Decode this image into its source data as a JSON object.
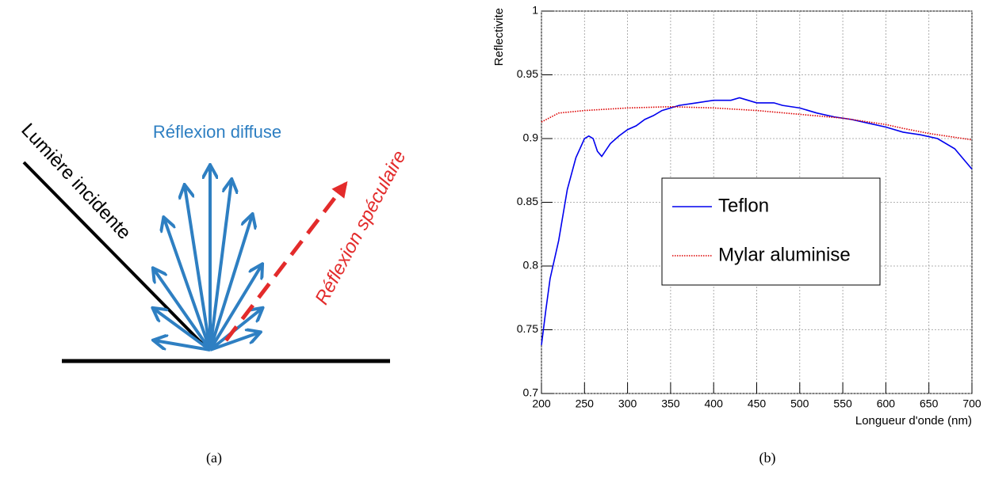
{
  "diagram": {
    "incident_label": "Lumière incidente",
    "diffuse_label": "Réflexion diffuse",
    "specular_label": "Réflexion spéculaire"
  },
  "captions": [
    "(a)",
    "(b)"
  ],
  "chart_data": {
    "type": "line",
    "y_label": "Reflectivite",
    "x_label": "Longueur d'onde (nm)",
    "xlim": [
      200,
      700
    ],
    "xticks": [
      200,
      250,
      300,
      350,
      400,
      450,
      500,
      550,
      600,
      650,
      700
    ],
    "ylim": [
      0.7,
      1
    ],
    "yticks": [
      0.7,
      0.75,
      0.8,
      0.85,
      0.9,
      0.95,
      1
    ],
    "grid": true,
    "legend": "center",
    "series": [
      {
        "name": "Teflon",
        "color": "#0000ee",
        "style": "solid",
        "x": [
          200,
          205,
          210,
          220,
          230,
          240,
          250,
          255,
          260,
          265,
          270,
          280,
          290,
          300,
          310,
          320,
          330,
          340,
          350,
          360,
          380,
          400,
          420,
          430,
          440,
          450,
          470,
          480,
          500,
          520,
          540,
          560,
          580,
          600,
          620,
          640,
          660,
          680,
          690,
          700
        ],
        "values": [
          0.738,
          0.765,
          0.79,
          0.82,
          0.86,
          0.885,
          0.9,
          0.902,
          0.9,
          0.89,
          0.886,
          0.896,
          0.902,
          0.907,
          0.91,
          0.915,
          0.918,
          0.922,
          0.924,
          0.926,
          0.928,
          0.93,
          0.93,
          0.932,
          0.93,
          0.928,
          0.928,
          0.926,
          0.924,
          0.92,
          0.917,
          0.915,
          0.912,
          0.909,
          0.905,
          0.903,
          0.9,
          0.892,
          0.884,
          0.876
        ]
      },
      {
        "name": "Mylar aluminise",
        "color": "#dd0000",
        "style": "dotted",
        "x": [
          200,
          220,
          250,
          300,
          350,
          400,
          450,
          500,
          550,
          600,
          620,
          650,
          700
        ],
        "values": [
          0.913,
          0.92,
          0.922,
          0.924,
          0.925,
          0.924,
          0.922,
          0.919,
          0.916,
          0.911,
          0.908,
          0.904,
          0.899
        ]
      }
    ]
  }
}
